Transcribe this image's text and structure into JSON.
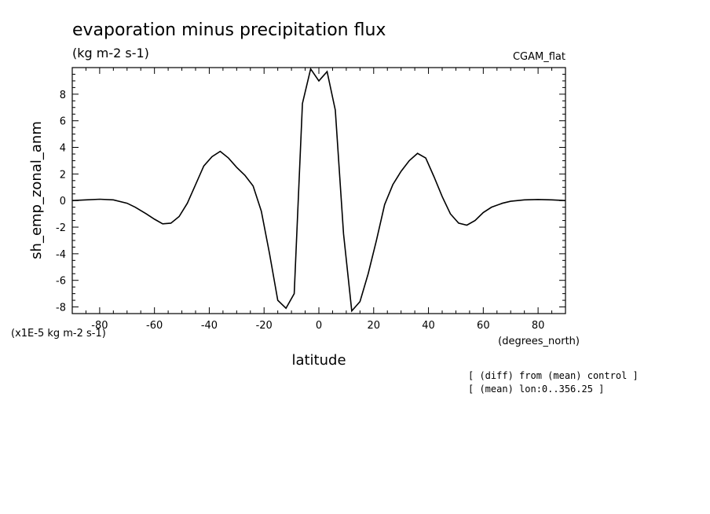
{
  "chart_data": {
    "type": "line",
    "title": "evaporation minus precipitation flux",
    "units": "(kg m-2 s-1)",
    "model": "CGAM_flat",
    "xlabel": "latitude",
    "xunits": "(degrees_north)",
    "ylabel": "sh_emp_zonal_anm",
    "yscale": "(x1E-5 kg m-2 s-1)",
    "xlim": [
      -90,
      90
    ],
    "ylim": [
      -8.5,
      10
    ],
    "x_ticks": [
      -80,
      -60,
      -40,
      -20,
      0,
      20,
      40,
      60,
      80
    ],
    "y_ticks": [
      -8,
      -6,
      -4,
      -2,
      0,
      2,
      4,
      6,
      8
    ],
    "notes": [
      "[ (diff) from (mean) control ]",
      "[ (mean) lon:0..356.25 ]"
    ],
    "grid": false,
    "series": [
      {
        "x": [
          -90,
          -85,
          -80,
          -75,
          -70,
          -67,
          -63,
          -60,
          -57,
          -54,
          -51,
          -48,
          -45,
          -42,
          -39,
          -36,
          -33,
          -30,
          -27,
          -24,
          -21,
          -18,
          -15,
          -12,
          -9,
          -6,
          -3,
          0,
          3,
          6,
          9,
          12,
          15,
          18,
          21,
          24,
          27,
          30,
          33,
          36,
          39,
          42,
          45,
          48,
          51,
          54,
          57,
          60,
          63,
          67,
          70,
          75,
          80,
          85,
          90
        ],
        "y": [
          0.0,
          0.05,
          0.1,
          0.05,
          -0.2,
          -0.5,
          -1.0,
          -1.4,
          -1.75,
          -1.7,
          -1.2,
          -0.2,
          1.2,
          2.6,
          3.3,
          3.7,
          3.2,
          2.5,
          1.9,
          1.1,
          -0.8,
          -4.0,
          -7.5,
          -8.1,
          -7.0,
          7.3,
          9.9,
          9.0,
          9.7,
          6.8,
          -2.5,
          -8.3,
          -7.6,
          -5.5,
          -3.0,
          -0.3,
          1.2,
          2.2,
          3.0,
          3.55,
          3.2,
          1.8,
          0.3,
          -1.0,
          -1.7,
          -1.85,
          -1.5,
          -0.9,
          -0.5,
          -0.2,
          -0.05,
          0.05,
          0.08,
          0.05,
          0.0
        ]
      }
    ]
  }
}
